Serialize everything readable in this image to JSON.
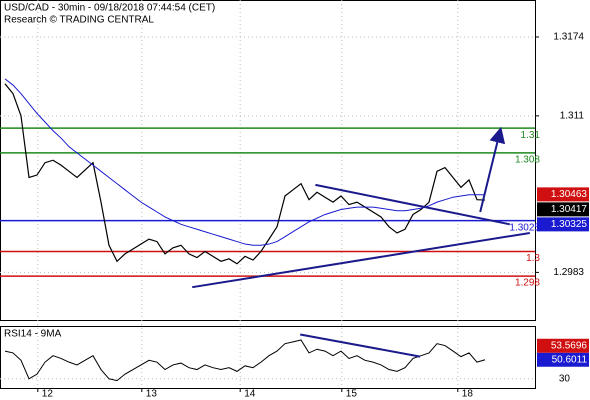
{
  "chart_data": {
    "type": "line",
    "title": "USD/CAD - 30min - 09/18/2018 07:44:54 (CET)",
    "subtitle": "Research © TRADING CENTRAL",
    "xlim": [
      -0.625,
      66.25
    ],
    "xticks": [
      {
        "value": 4.1,
        "label": "12"
      },
      {
        "value": 17.1,
        "label": "13"
      },
      {
        "value": 29.4,
        "label": "14"
      },
      {
        "value": 42.1,
        "label": "15"
      },
      {
        "value": 56.6,
        "label": "18"
      }
    ],
    "ylim": [
      1.2946,
      1.3204
    ],
    "yticks": [
      1.2983,
      1.311,
      1.3174
    ],
    "grid": true,
    "series": [
      {
        "color": "#000000",
        "values": [
          1.3136,
          1.3128,
          1.311,
          1.306,
          1.3062,
          1.3072,
          1.3074,
          1.307,
          1.3065,
          1.306,
          1.3066,
          1.3072,
          1.304,
          1.3005,
          1.2992,
          1.2998,
          1.3002,
          1.3006,
          1.301,
          1.3008,
          1.2998,
          1.3003,
          1.3005,
          1.2998,
          1.2995,
          1.3,
          1.2996,
          1.2992,
          1.2994,
          1.299,
          1.2996,
          1.2993,
          1.3,
          1.301,
          1.302,
          1.3045,
          1.305,
          1.3055,
          1.3042,
          1.3048,
          1.3044,
          1.304,
          1.3045,
          1.3038,
          1.304,
          1.3036,
          1.3032,
          1.3028,
          1.302,
          1.3015,
          1.3018,
          1.303,
          1.3034,
          1.304,
          1.3065,
          1.3068,
          1.306,
          1.3052,
          1.3058,
          1.3042,
          1.30417
        ]
      },
      {
        "color": "#1a1ad0",
        "values": [
          1.314,
          1.3135,
          1.3128,
          1.312,
          1.3112,
          1.3105,
          1.3098,
          1.3092,
          1.3085,
          1.308,
          1.3075,
          1.307,
          1.3065,
          1.306,
          1.3055,
          1.305,
          1.3045,
          1.304,
          1.3036,
          1.3032,
          1.3028,
          1.3025,
          1.3022,
          1.302,
          1.3018,
          1.3016,
          1.3014,
          1.3012,
          1.301,
          1.3008,
          1.3006,
          1.3005,
          1.3005,
          1.3006,
          1.3008,
          1.3012,
          1.3016,
          1.302,
          1.3024,
          1.3027,
          1.303,
          1.3032,
          1.3034,
          1.3035,
          1.3036,
          1.3036,
          1.3036,
          1.3035,
          1.3034,
          1.3033,
          1.3033,
          1.3034,
          1.3035,
          1.3037,
          1.304,
          1.3042,
          1.3044,
          1.3045,
          1.3046,
          1.3046,
          1.3046
        ]
      }
    ],
    "levels": [
      {
        "value": 1.31,
        "color": "#1e8a1e"
      },
      {
        "value": 1.308,
        "color": "#1e8a1e"
      },
      {
        "value": 1.3025,
        "color": "#1a1ad0"
      },
      {
        "value": 1.3,
        "color": "#d01010"
      },
      {
        "value": 1.298,
        "color": "#d01010"
      }
    ],
    "price_tags": [
      {
        "value": 1.30463,
        "color": "#d01010"
      },
      {
        "value": 1.30417,
        "color": "#000000"
      },
      {
        "value": 1.30325,
        "color": "#1a1ad0"
      }
    ],
    "trendlines": [
      {
        "x": [
          23.4,
          65.6
        ],
        "y": [
          1.2971,
          1.3015
        ]
      },
      {
        "x": [
          38.8,
          63.1
        ],
        "y": [
          1.3054,
          1.3022
        ]
      },
      {
        "x": [
          59.4,
          61.9
        ],
        "y": [
          1.3032,
          1.3098
        ],
        "arrow": true
      }
    ],
    "rsi": {
      "label": "RSI14 - 9MA",
      "ylim": [
        20,
        85
      ],
      "yticks": [
        30
      ],
      "color": "#000000",
      "values": [
        60,
        58,
        50,
        30,
        35,
        48,
        55,
        52,
        48,
        45,
        50,
        55,
        40,
        30,
        28,
        35,
        40,
        45,
        50,
        48,
        40,
        45,
        47,
        42,
        40,
        45,
        42,
        40,
        42,
        38,
        44,
        42,
        48,
        55,
        60,
        68,
        70,
        72,
        58,
        62,
        60,
        55,
        60,
        52,
        55,
        50,
        48,
        45,
        40,
        38,
        42,
        52,
        55,
        58,
        68,
        66,
        60,
        54,
        58,
        48,
        50.6011
      ],
      "tags": [
        {
          "value": 53.5696,
          "color": "#d01010"
        },
        {
          "value": 50.6011,
          "color": "#1a1ad0"
        }
      ],
      "trendlines": [
        {
          "x": [
            36.9,
            51.9
          ],
          "y": [
            78,
            54
          ]
        }
      ]
    }
  }
}
